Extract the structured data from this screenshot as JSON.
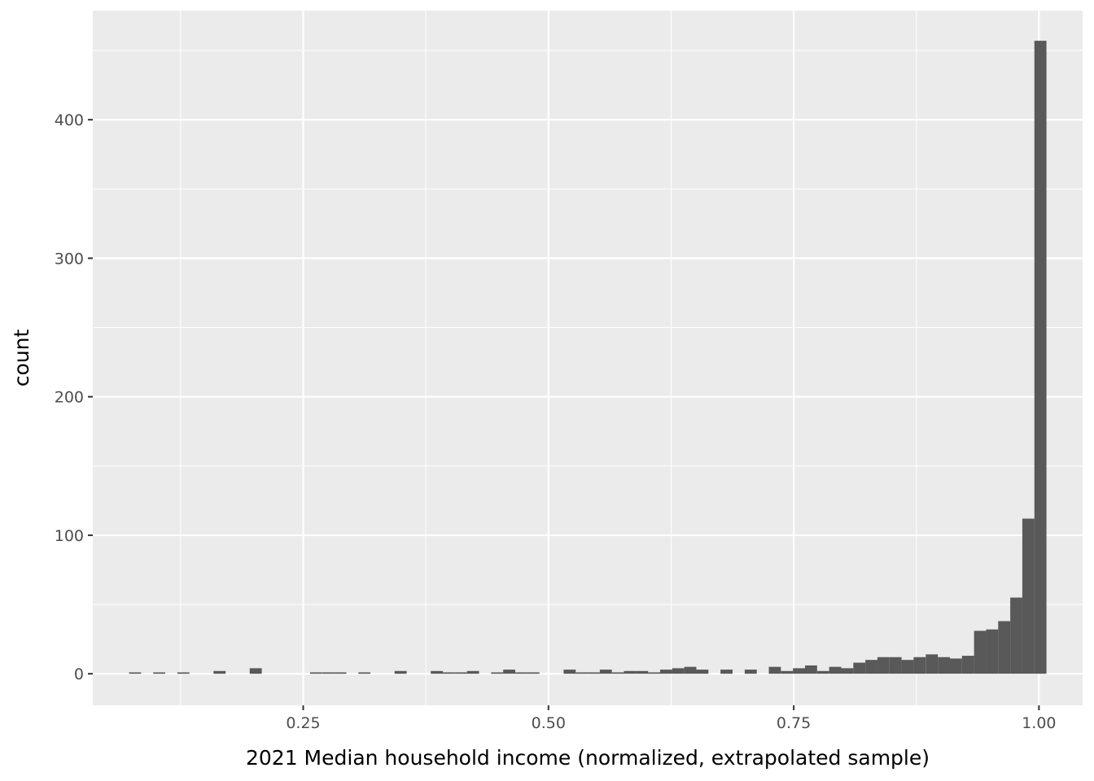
{
  "chart_data": {
    "type": "bar",
    "subtype": "histogram",
    "title": "",
    "xlabel": "2021 Median household income (normalized, extrapolated sample)",
    "ylabel": "count",
    "xlim": [
      0.0355,
      1.0445
    ],
    "ylim": [
      -22.8,
      478.8
    ],
    "x_ticks": [
      0.25,
      0.5,
      0.75,
      1.0
    ],
    "x_tick_labels": [
      "0.25",
      "0.50",
      "0.75",
      "1.00"
    ],
    "y_ticks": [
      0,
      100,
      200,
      300,
      400
    ],
    "y_tick_labels": [
      "0",
      "100",
      "200",
      "300",
      "400"
    ],
    "grid": true,
    "panel_background": "#ebebeb",
    "bar_color": "#595959",
    "bin_width": 0.01231,
    "bin_centers": [
      0.0786,
      0.0909,
      0.1032,
      0.1155,
      0.1278,
      0.1401,
      0.1524,
      0.1647,
      0.177,
      0.1893,
      0.2016,
      0.2139,
      0.2262,
      0.2385,
      0.2508,
      0.2631,
      0.2755,
      0.2878,
      0.3001,
      0.3124,
      0.3247,
      0.337,
      0.3493,
      0.3616,
      0.3739,
      0.3862,
      0.3985,
      0.4108,
      0.4231,
      0.4354,
      0.4477,
      0.46,
      0.4724,
      0.4847,
      0.497,
      0.5093,
      0.5216,
      0.5339,
      0.5462,
      0.5585,
      0.5708,
      0.5831,
      0.5954,
      0.6077,
      0.62,
      0.6323,
      0.6446,
      0.6569,
      0.6692,
      0.6815,
      0.6939,
      0.7062,
      0.7185,
      0.7308,
      0.7431,
      0.7554,
      0.7677,
      0.78,
      0.7923,
      0.8046,
      0.8169,
      0.8292,
      0.8415,
      0.8538,
      0.8661,
      0.8784,
      0.8908,
      0.9031,
      0.9154,
      0.9277,
      0.94,
      0.9523,
      0.9646,
      0.9769,
      0.9892,
      1.0015
    ],
    "counts": [
      1,
      0,
      1,
      0,
      1,
      0,
      0,
      2,
      0,
      0,
      4,
      0,
      0,
      0,
      0,
      1,
      1,
      1,
      0,
      1,
      0,
      0,
      2,
      0,
      0,
      2,
      1,
      1,
      2,
      0,
      1,
      3,
      1,
      1,
      0,
      0,
      3,
      1,
      1,
      3,
      1,
      2,
      2,
      1,
      3,
      4,
      5,
      3,
      0,
      3,
      0,
      3,
      0,
      5,
      2,
      4,
      6,
      2,
      5,
      4,
      8,
      10,
      12,
      12,
      10,
      12,
      14,
      12,
      11,
      13,
      31,
      32,
      38,
      55,
      112,
      457
    ]
  }
}
